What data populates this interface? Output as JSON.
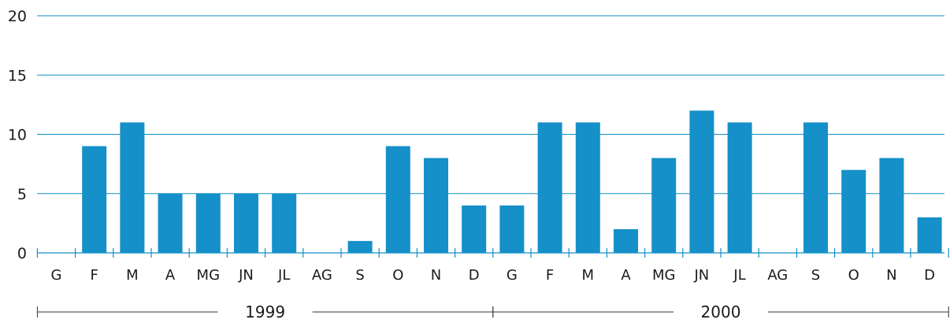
{
  "colors": {
    "bar": "#1590c9",
    "grid": "#1590c9",
    "axis": "#1590c9",
    "text": "#1a1a1a",
    "year_rule": "#333333"
  },
  "chart_data": {
    "type": "bar",
    "title": "",
    "xlabel": "",
    "ylabel": "",
    "ylim": [
      0,
      20
    ],
    "yticks": [
      0,
      5,
      10,
      15,
      20
    ],
    "grid": true,
    "categories": [
      "G",
      "F",
      "M",
      "A",
      "MG",
      "JN",
      "JL",
      "AG",
      "S",
      "O",
      "N",
      "D",
      "G",
      "F",
      "M",
      "A",
      "MG",
      "JN",
      "JL",
      "AG",
      "S",
      "O",
      "N",
      "D"
    ],
    "values": [
      0,
      9,
      11,
      5,
      5,
      5,
      5,
      0,
      1,
      9,
      8,
      4,
      4,
      11,
      11,
      2,
      8,
      12,
      11,
      0,
      11,
      7,
      8,
      3
    ],
    "year_groups": [
      {
        "label": "1999",
        "start": 0,
        "end": 11
      },
      {
        "label": "2000",
        "start": 12,
        "end": 23
      }
    ]
  }
}
